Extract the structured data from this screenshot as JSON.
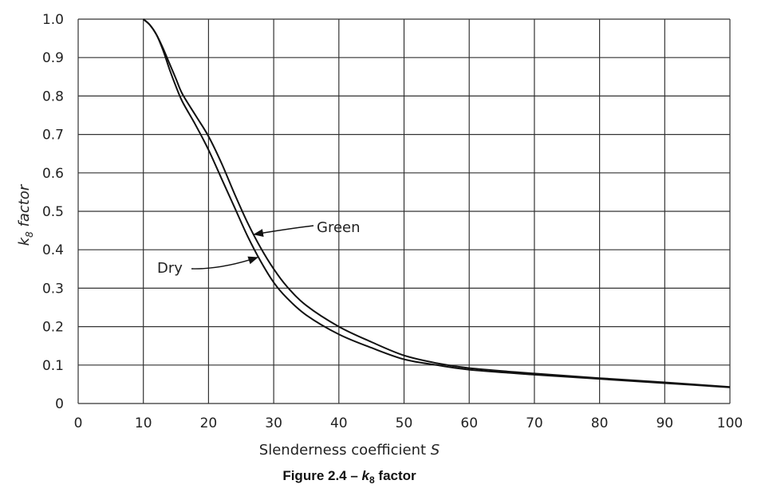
{
  "chart_data": {
    "type": "line",
    "caption": {
      "prefix": "Figure 2.4 – ",
      "k": "k",
      "sub": "8",
      "suffix": " factor"
    },
    "xlabel": {
      "text": "Slenderness coefficient ",
      "var": "S"
    },
    "ylabel": {
      "k": "k",
      "sub": "8",
      "text": " factor"
    },
    "xlim": [
      0,
      100
    ],
    "ylim": [
      0,
      1.0
    ],
    "x_ticks": [
      0,
      10,
      20,
      30,
      40,
      50,
      60,
      70,
      80,
      90,
      100
    ],
    "x_tick_labels": [
      "0",
      "10",
      "20",
      "30",
      "40",
      "50",
      "60",
      "70",
      "80",
      "90",
      "100"
    ],
    "y_ticks": [
      0,
      0.1,
      0.2,
      0.3,
      0.4,
      0.5,
      0.6,
      0.7,
      0.8,
      0.9,
      1.0
    ],
    "y_tick_labels": [
      "0",
      "0.1",
      "0.2",
      "0.3",
      "0.4",
      "0.5",
      "0.6",
      "0.7",
      "0.8",
      "0.9",
      "1.0"
    ],
    "grid": true,
    "series": [
      {
        "name": "Green",
        "x": [
          10,
          11,
          12,
          13,
          14,
          15,
          16,
          18,
          20,
          22,
          24,
          26,
          28,
          30,
          32,
          35,
          40,
          45,
          50,
          55,
          60,
          70,
          80,
          90,
          100
        ],
        "y": [
          1.0,
          0.985,
          0.96,
          0.925,
          0.885,
          0.845,
          0.805,
          0.75,
          0.695,
          0.625,
          0.545,
          0.47,
          0.405,
          0.35,
          0.305,
          0.255,
          0.2,
          0.16,
          0.125,
          0.105,
          0.092,
          0.078,
          0.066,
          0.055,
          0.043
        ]
      },
      {
        "name": "Dry",
        "x": [
          10,
          11,
          12,
          13,
          14,
          15,
          16,
          18,
          20,
          22,
          24,
          26,
          28,
          30,
          32,
          35,
          40,
          45,
          50,
          55,
          60,
          70,
          80,
          90,
          100
        ],
        "y": [
          1.0,
          0.985,
          0.96,
          0.92,
          0.87,
          0.825,
          0.785,
          0.725,
          0.66,
          0.585,
          0.51,
          0.435,
          0.37,
          0.315,
          0.275,
          0.23,
          0.18,
          0.145,
          0.115,
          0.1,
          0.088,
          0.075,
          0.064,
          0.053,
          0.042
        ]
      }
    ],
    "annotations": [
      {
        "text": "Green",
        "series": "Green",
        "point_x": 27,
        "point_y": 0.44
      },
      {
        "text": "Dry",
        "series": "Dry",
        "point_x": 27.5,
        "point_y": 0.38
      }
    ]
  }
}
